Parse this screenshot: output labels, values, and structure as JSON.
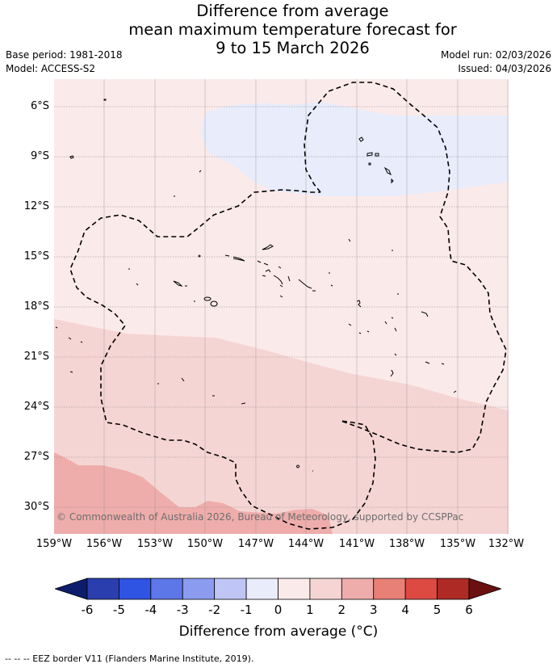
{
  "title": {
    "line1": "Difference from average",
    "line2": "mean maximum temperature forecast for",
    "line3": "9 to 15 March 2026"
  },
  "meta": {
    "base_period": "Base period: 1981-2018",
    "model": "Model: ACCESS-S2",
    "model_run": "Model run: 02/03/2026",
    "issued": "Issued: 04/03/2026"
  },
  "map": {
    "lat_ticks": [
      "6°S",
      "9°S",
      "12°S",
      "15°S",
      "18°S",
      "21°S",
      "24°S",
      "27°S",
      "30°S"
    ],
    "lon_ticks": [
      "159°W",
      "156°W",
      "153°W",
      "150°W",
      "147°W",
      "144°W",
      "141°W",
      "138°W",
      "135°W",
      "132°W"
    ],
    "copyright": "© Commonwealth of Australia 2026, Bureau of Meteorology, supported by CCSPPac",
    "region_categories": {
      "north_cool_anomaly": "-1 to 0",
      "central_anomaly": "0 to 1",
      "southern_anomaly": "1 to 2",
      "southwest_anomaly": "2 to 3"
    },
    "colors": {
      "cat_m1_0": "#e8ecfb",
      "cat_0_1": "#fbeaea",
      "cat_1_2": "#f5d5d4",
      "cat_2_3": "#eeadab",
      "gridline": "#888888",
      "eez_border": "#000000"
    }
  },
  "colorbar": {
    "ticks": [
      "-6",
      "-5",
      "-4",
      "-3",
      "-2",
      "-1",
      "0",
      "1",
      "2",
      "3",
      "4",
      "5",
      "6"
    ],
    "colors": [
      "#2a3fad",
      "#2f53e3",
      "#5d76e8",
      "#8b9cf0",
      "#bfc6f6",
      "#e8ecfb",
      "#fbeaea",
      "#f5d5d4",
      "#eeadab",
      "#e88078",
      "#dc4a42",
      "#ad2a25"
    ],
    "under_color": "#0d1c6b",
    "over_color": "#6b1010",
    "label": "Difference from average (°C)"
  },
  "legend_note": "-- -- -- EEZ border V11 (Flanders Marine Institute, 2019)."
}
